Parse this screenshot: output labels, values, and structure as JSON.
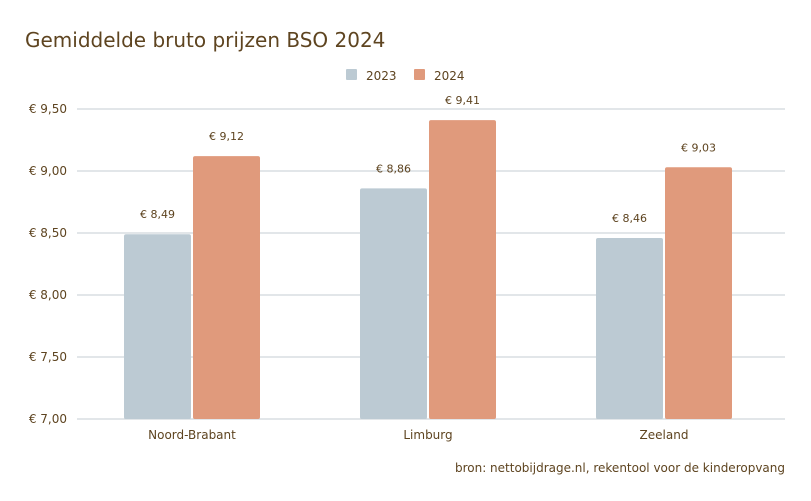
{
  "chart_data": {
    "type": "bar",
    "title": "Gemiddelde bruto prijzen BSO 2024",
    "categories": [
      "Noord-Brabant",
      "Limburg",
      "Zeeland"
    ],
    "series": [
      {
        "name": "2023",
        "color": "#bccad3",
        "values": [
          8.49,
          8.86,
          8.46
        ],
        "labels": [
          "€ 8,49",
          "€ 8,86",
          "€ 8,46"
        ]
      },
      {
        "name": "2024",
        "color": "#e09a7c",
        "values": [
          9.12,
          9.41,
          9.03
        ],
        "labels": [
          "€ 9,12",
          "€ 9,41",
          "€ 9,03"
        ]
      }
    ],
    "yticks": [
      7.0,
      7.5,
      8.0,
      8.5,
      9.0,
      9.5
    ],
    "ytick_labels": [
      "€ 7,00",
      "€ 7,50",
      "€ 8,00",
      "€ 8,50",
      "€ 9,00",
      "€ 9,50"
    ],
    "ylim": [
      7.0,
      9.5
    ],
    "xlabel": "",
    "ylabel": "",
    "grid": true,
    "legend": "top-center",
    "source": "bron: nettobijdrage.nl, rekentool voor de kinderopvang",
    "colors": {
      "text": "#5e4420",
      "grid": "#c5cdd3"
    }
  }
}
